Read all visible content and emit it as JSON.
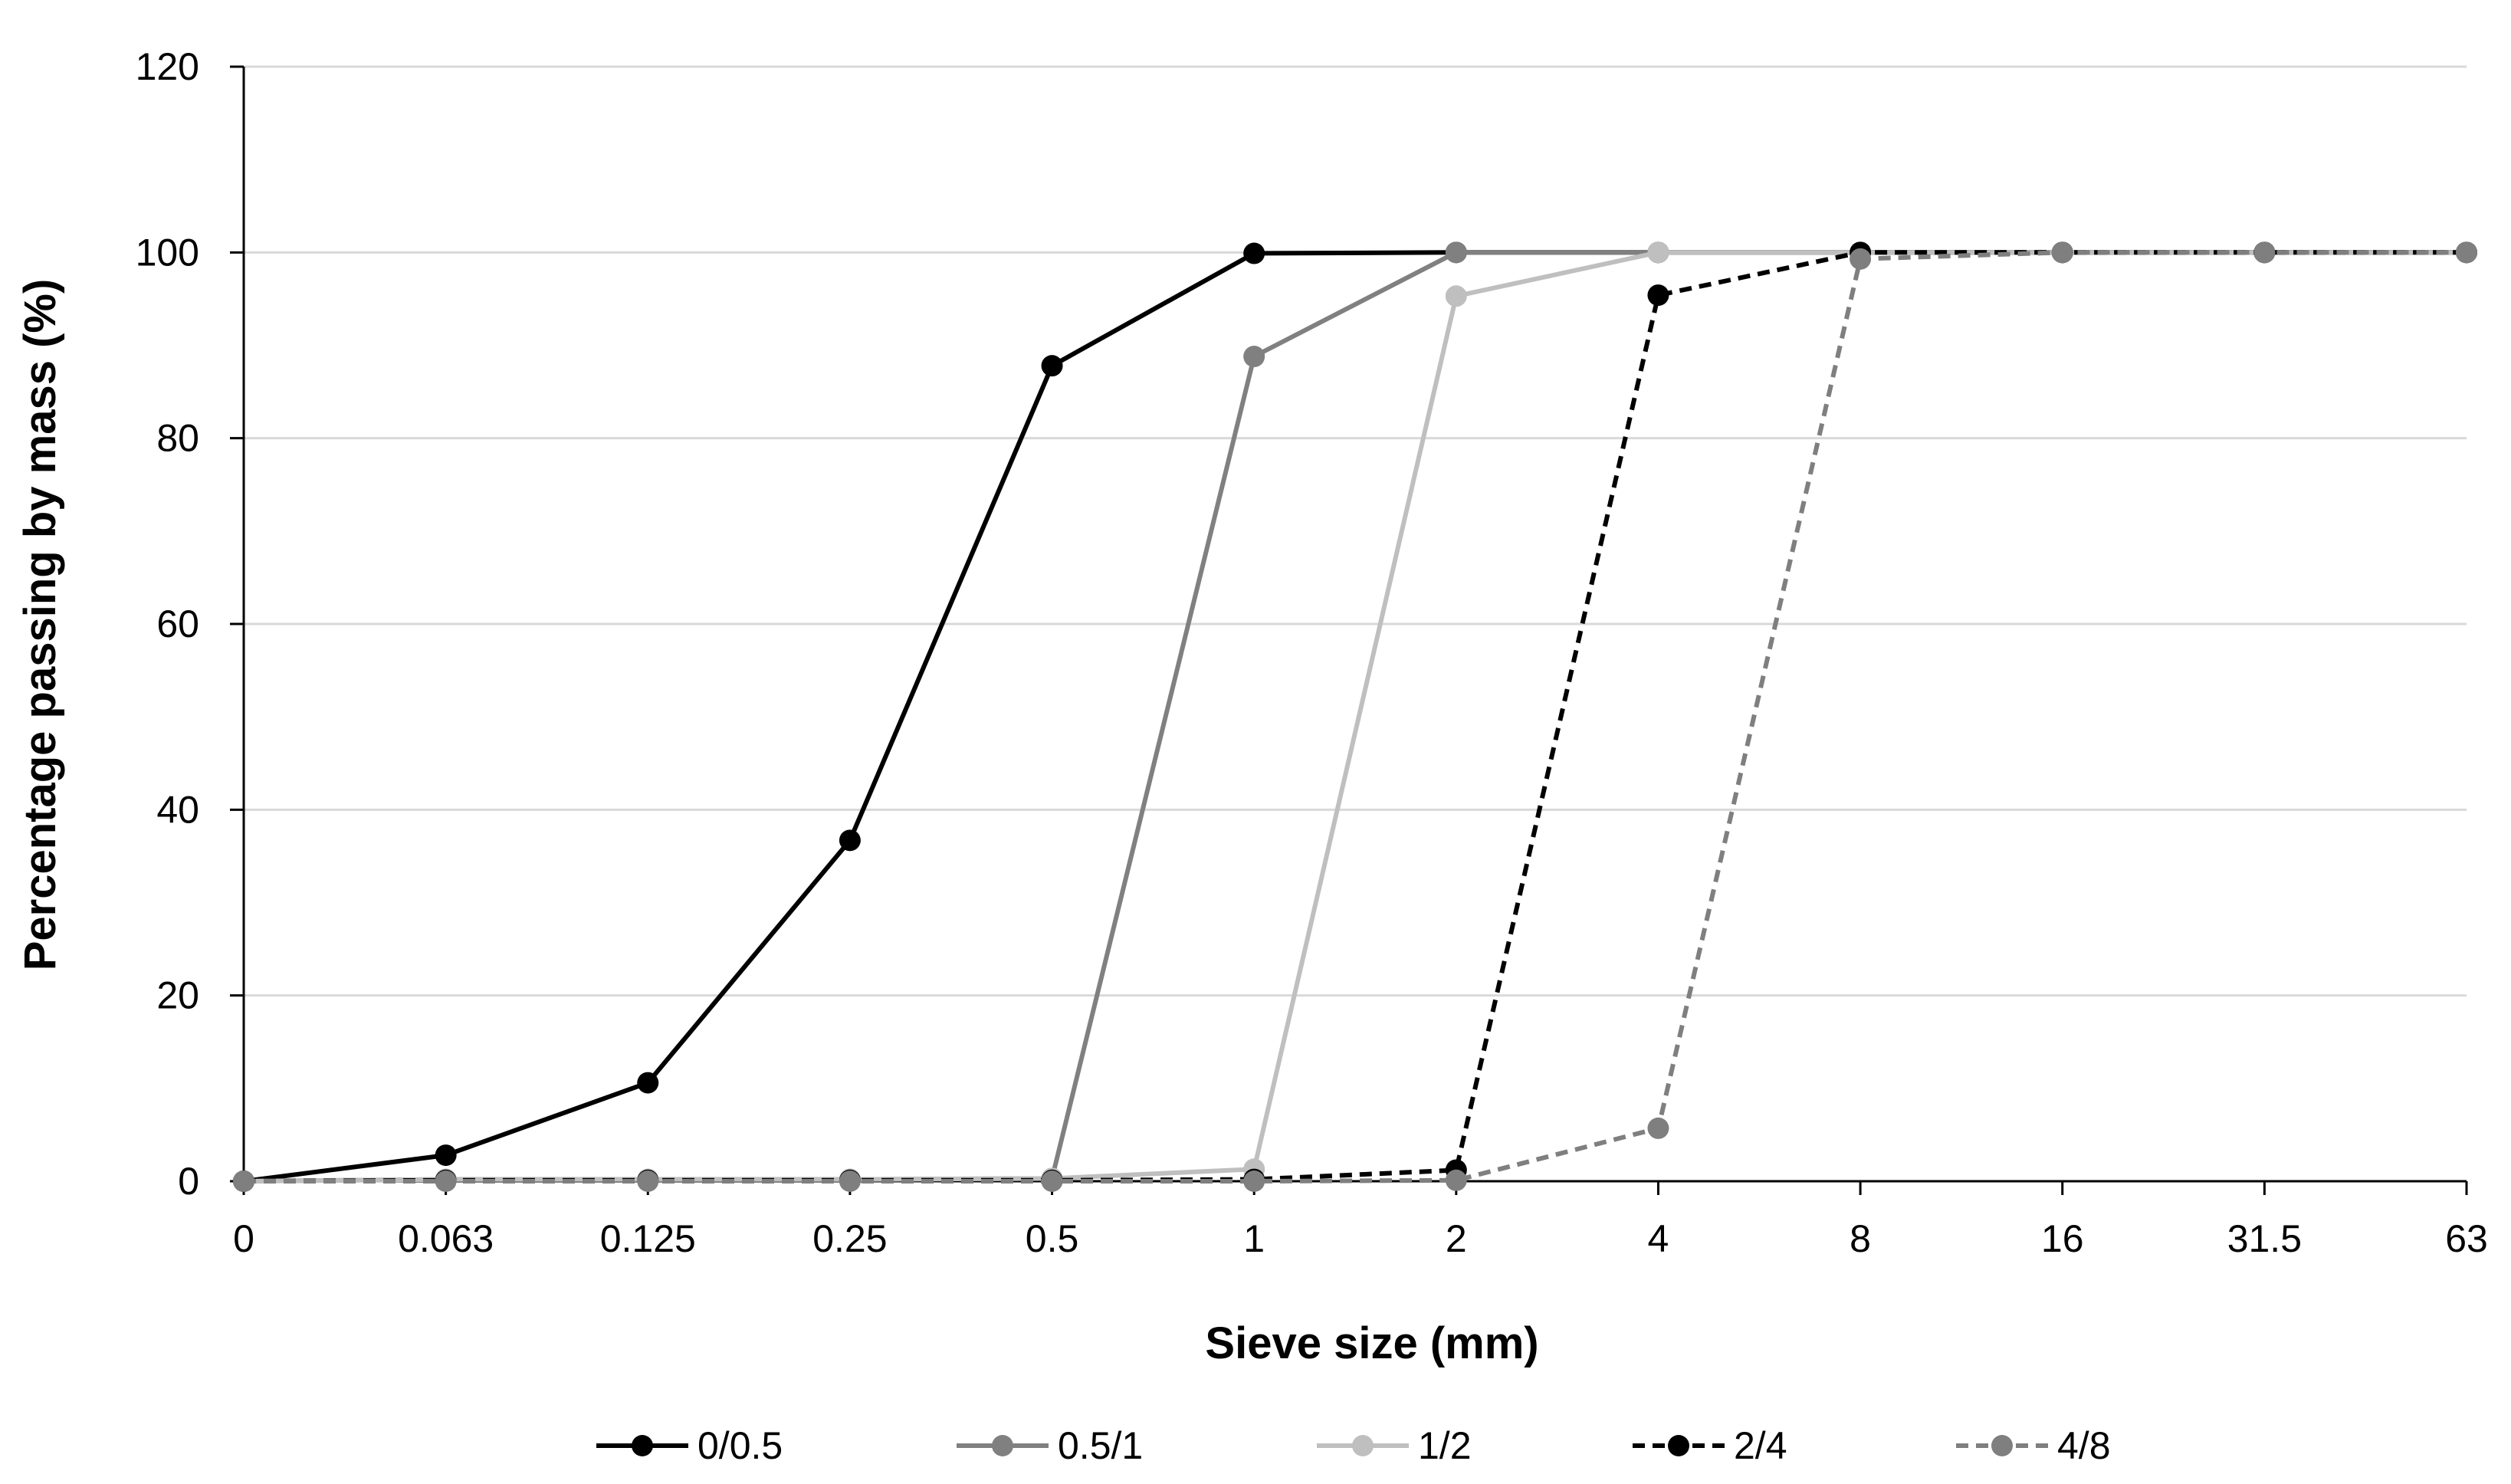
{
  "chart_data": {
    "type": "line",
    "title": "",
    "xlabel": "Sieve size (mm)",
    "ylabel": "Percentage passing by mass (%)",
    "categories": [
      "0",
      "0.063",
      "0.125",
      "0.25",
      "0.5",
      "1",
      "2",
      "4",
      "8",
      "16",
      "31.5",
      "63"
    ],
    "ylim": [
      0,
      120
    ],
    "yticks": [
      "0",
      "20",
      "40",
      "60",
      "80",
      "100",
      "120"
    ],
    "grid": true,
    "legend_position": "bottom",
    "series": [
      {
        "name": "0/0.5",
        "color": "#000000",
        "dashed": false,
        "values": [
          0,
          2.8,
          10.6,
          36.7,
          87.8,
          99.9,
          100,
          100,
          100,
          100,
          100,
          100
        ]
      },
      {
        "name": "0.5/1",
        "color": "#808080",
        "dashed": false,
        "values": [
          0,
          0.2,
          0.2,
          0.2,
          0.3,
          88.8,
          100,
          100,
          100,
          100,
          100,
          100
        ]
      },
      {
        "name": "1/2",
        "color": "#bfbfbf",
        "dashed": false,
        "values": [
          0,
          0.2,
          0.2,
          0.2,
          0.3,
          1.3,
          95.3,
          100,
          100,
          100,
          100,
          100
        ]
      },
      {
        "name": "2/4",
        "color": "#000000",
        "dashed": true,
        "values": [
          0,
          0.1,
          0.1,
          0.1,
          0.1,
          0.2,
          1.2,
          95.4,
          100,
          100,
          100,
          100
        ]
      },
      {
        "name": "4/8",
        "color": "#7f7f7f",
        "dashed": true,
        "values": [
          0,
          0,
          0,
          0,
          0,
          0,
          0.1,
          5.7,
          99.3,
          100,
          100,
          100
        ]
      }
    ]
  }
}
